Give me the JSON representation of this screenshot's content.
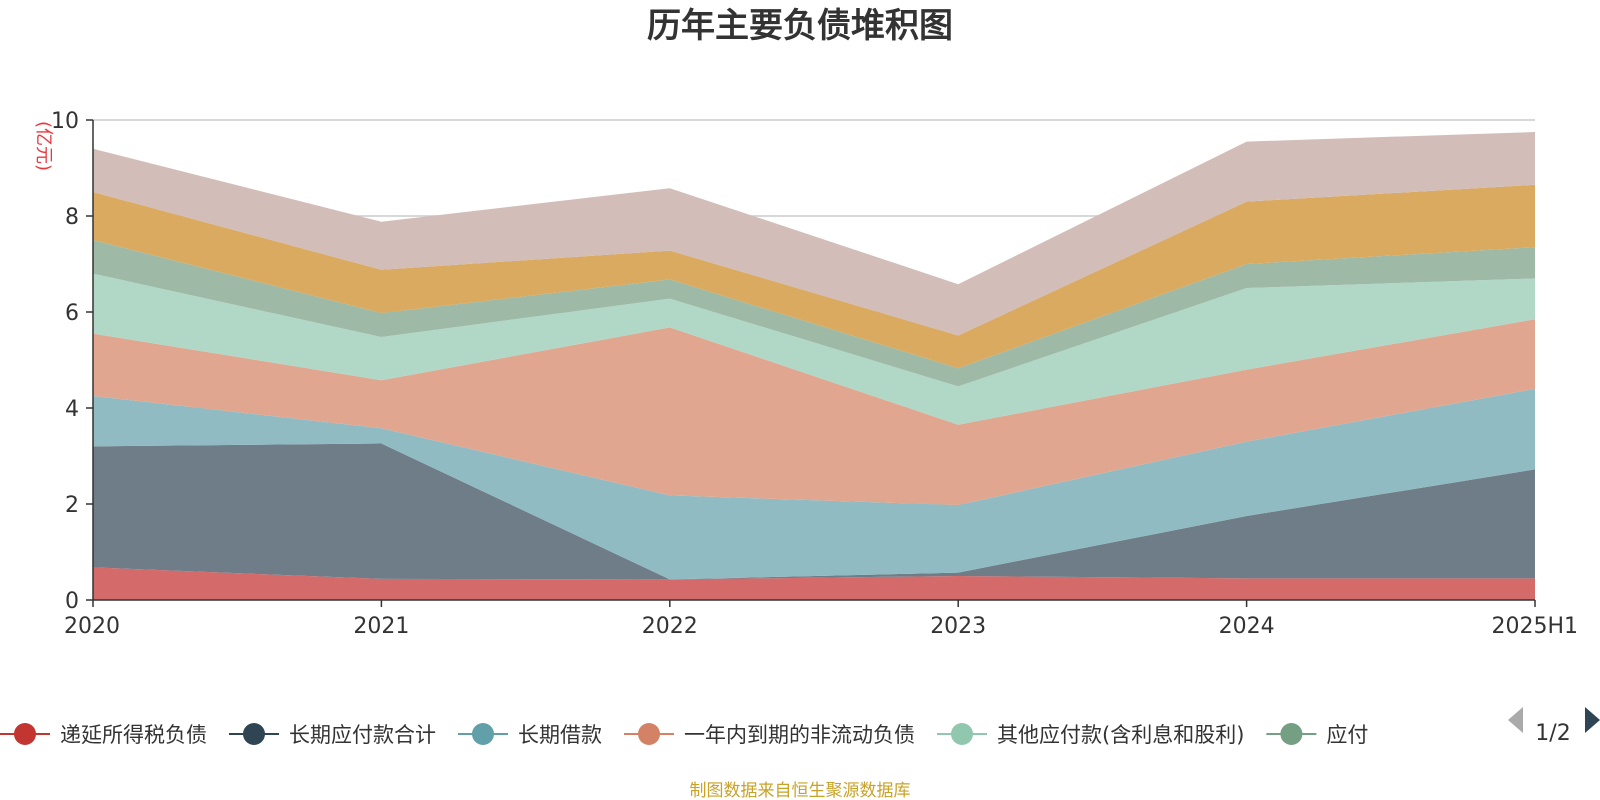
{
  "chart_data": {
    "type": "area",
    "stacked": true,
    "title": "历年主要负债堆积图",
    "ylabel": "(亿元)",
    "ylim": [
      0,
      10
    ],
    "yticks": [
      0,
      2,
      4,
      6,
      8,
      10
    ],
    "grid": true,
    "categories": [
      "2020",
      "2021",
      "2022",
      "2023",
      "2024",
      "2025H1"
    ],
    "series": [
      {
        "name": "递延所得税负债",
        "color": "#d46a6a",
        "marker_color": "#c23531",
        "values": [
          0.68,
          0.44,
          0.43,
          0.5,
          0.45,
          0.45
        ]
      },
      {
        "name": "长期应付款合计",
        "color": "#6e7d88",
        "marker_color": "#2f4554",
        "values": [
          2.52,
          2.82,
          0.0,
          0.07,
          1.3,
          2.27
        ]
      },
      {
        "name": "长期借款",
        "color": "#91bbc3",
        "marker_color": "#61a0a8",
        "values": [
          1.05,
          0.32,
          1.75,
          1.41,
          1.55,
          1.68
        ]
      },
      {
        "name": "一年内到期的非流动负债",
        "color": "#e0a690",
        "marker_color": "#d48265",
        "values": [
          1.3,
          1.0,
          3.5,
          1.67,
          1.5,
          1.45
        ]
      },
      {
        "name": "其他应付款(含利息和股利)",
        "color": "#b1d8c6",
        "marker_color": "#91c7ae",
        "values": [
          1.25,
          0.9,
          0.6,
          0.8,
          1.7,
          0.85
        ]
      },
      {
        "name": "应付",
        "color": "#9eb9a6",
        "marker_color": "#749f83",
        "values": [
          0.7,
          0.5,
          0.4,
          0.38,
          0.5,
          0.65
        ]
      },
      {
        "name": "",
        "color": "#d9aa60",
        "values": [
          1.0,
          0.9,
          0.6,
          0.68,
          1.3,
          1.3
        ]
      },
      {
        "name": "",
        "color": "#d2bdb8",
        "values": [
          0.9,
          1.0,
          1.3,
          1.07,
          1.25,
          1.1
        ]
      }
    ],
    "legend": {
      "position": "bottom",
      "page": "1/2"
    },
    "source": "制图数据来自恒生聚源数据库"
  }
}
